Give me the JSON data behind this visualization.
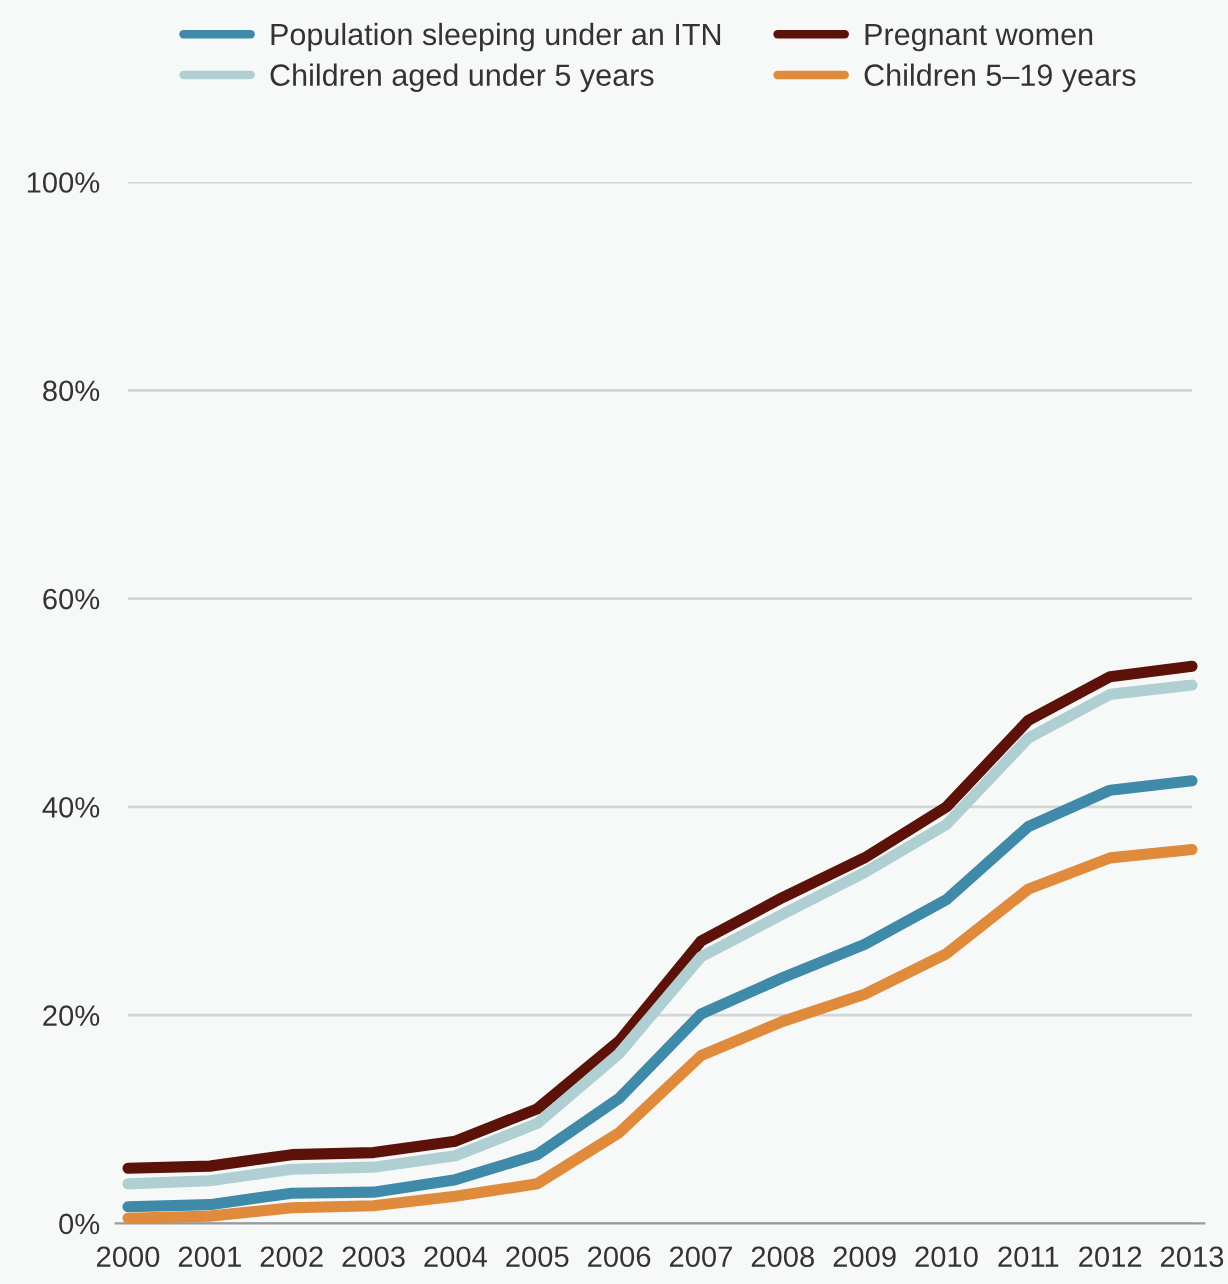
{
  "chart_data": {
    "type": "line",
    "x": [
      2000,
      2001,
      2002,
      2003,
      2004,
      2005,
      2006,
      2007,
      2008,
      2009,
      2010,
      2011,
      2012,
      2013
    ],
    "series": [
      {
        "name": "Population sleeping under an ITN",
        "color": "#3f8aa8",
        "values": [
          1.6,
          1.8,
          2.9,
          3.0,
          4.2,
          6.6,
          12.0,
          20.1,
          23.6,
          26.8,
          31.1,
          38.1,
          41.6,
          42.5
        ]
      },
      {
        "name": "Pregnant women",
        "color": "#5c1208",
        "values": [
          5.3,
          5.5,
          6.6,
          6.8,
          7.9,
          11.0,
          17.5,
          27.1,
          31.3,
          35.1,
          40.0,
          48.3,
          52.5,
          53.5
        ]
      },
      {
        "name": "Children aged under 5 years",
        "color": "#b0cfd2",
        "values": [
          3.8,
          4.1,
          5.2,
          5.4,
          6.5,
          9.6,
          16.3,
          25.6,
          29.7,
          33.7,
          38.3,
          46.6,
          50.8,
          51.7
        ]
      },
      {
        "name": "Children 5–19 years",
        "color": "#e08a3c",
        "values": [
          0.5,
          0.7,
          1.5,
          1.7,
          2.6,
          3.8,
          8.7,
          16.1,
          19.4,
          22.0,
          25.9,
          32.1,
          35.1,
          35.9
        ]
      }
    ],
    "xlim": [
      2000,
      2013
    ],
    "xticks": [
      2000,
      2001,
      2002,
      2003,
      2004,
      2005,
      2006,
      2007,
      2008,
      2009,
      2010,
      2011,
      2012,
      2013
    ],
    "ylim": [
      0,
      100
    ],
    "yticks": [
      {
        "value": 0,
        "label": "0%"
      },
      {
        "value": 20,
        "label": "20%"
      },
      {
        "value": 40,
        "label": "40%"
      },
      {
        "value": 60,
        "label": "60%"
      },
      {
        "value": 80,
        "label": "80%"
      },
      {
        "value": 100,
        "label": "100%"
      }
    ],
    "grid": "y",
    "legend": "top",
    "marker": "none",
    "line_style": "solid"
  }
}
